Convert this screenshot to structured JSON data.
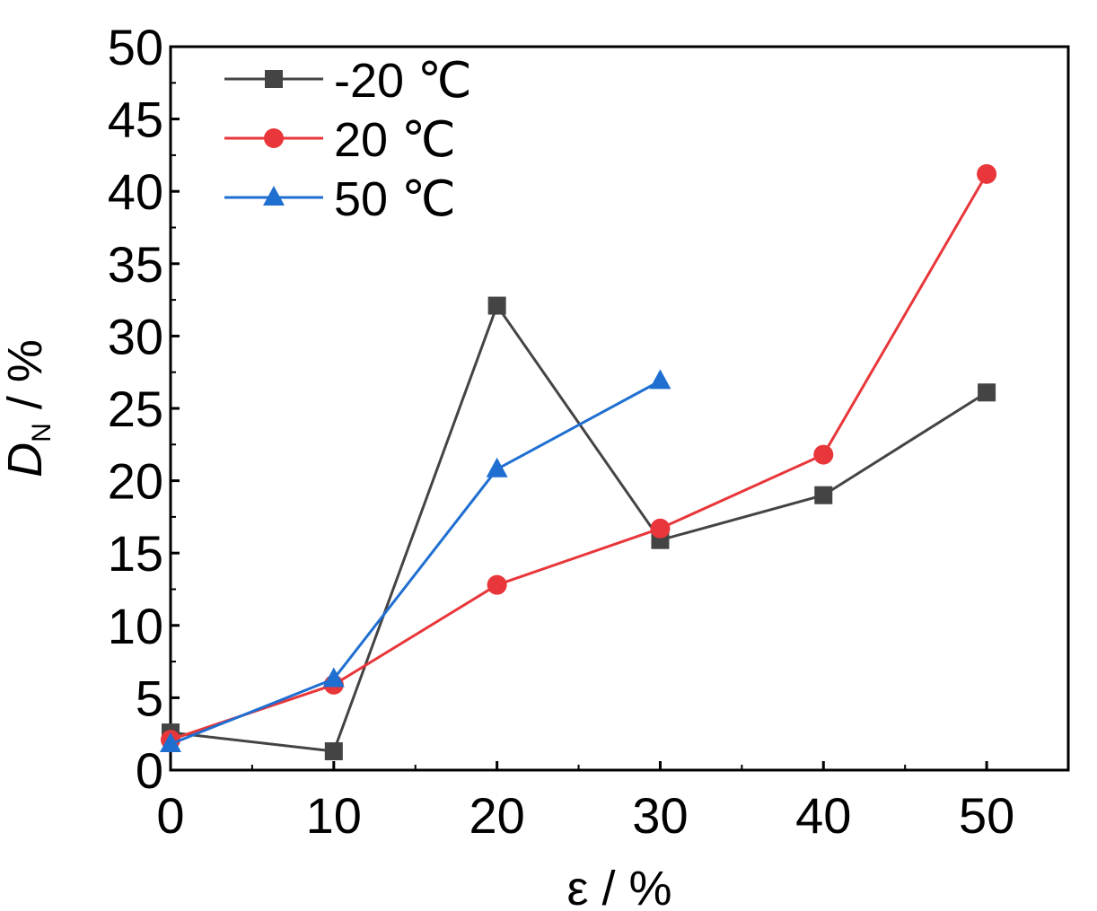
{
  "chart_data": {
    "type": "line",
    "xlabel": "ε / %",
    "ylabel": "D",
    "ylabel_sub": "N",
    "ylabel_unit": " / %",
    "xlim": [
      0,
      55
    ],
    "ylim": [
      0,
      50
    ],
    "xticks": [
      0,
      10,
      20,
      30,
      40,
      50
    ],
    "yticks": [
      0,
      5,
      10,
      15,
      20,
      25,
      30,
      35,
      40,
      45,
      50
    ],
    "grid": false,
    "legend_position": "top-left",
    "series": [
      {
        "name": "-20 ℃",
        "color": "#444444",
        "marker": "square",
        "x": [
          0,
          10,
          20,
          30,
          40,
          50
        ],
        "y": [
          2.6,
          1.3,
          32.1,
          15.9,
          19.0,
          26.1
        ]
      },
      {
        "name": "20 ℃",
        "color": "#e8363a",
        "marker": "circle",
        "x": [
          0,
          10,
          20,
          30,
          40,
          50
        ],
        "y": [
          2.1,
          5.9,
          12.8,
          16.7,
          21.8,
          41.2
        ]
      },
      {
        "name": "50 ℃",
        "color": "#1f6fd1",
        "marker": "triangle",
        "x": [
          0,
          10,
          20,
          30
        ],
        "y": [
          1.8,
          6.3,
          20.8,
          26.9
        ]
      }
    ]
  }
}
